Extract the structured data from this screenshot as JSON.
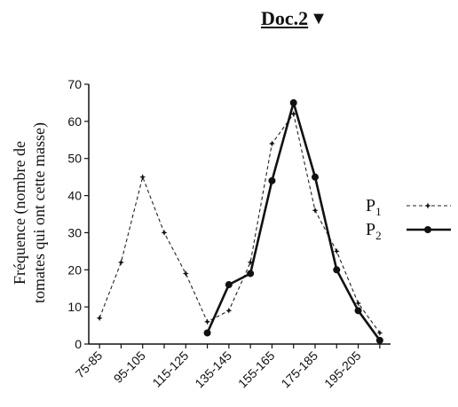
{
  "header": {
    "doc_label": "Doc.2",
    "marker": "▼"
  },
  "chart_data": {
    "type": "line",
    "title": "",
    "xlabel": "",
    "ylabel_line1": "Fréquence (nombre de",
    "ylabel_line2": "tomates qui ont cette masse)",
    "ylim": [
      0,
      70
    ],
    "yticks": [
      "0",
      "10",
      "20",
      "30",
      "40",
      "50",
      "60",
      "70"
    ],
    "categories": [
      "75-85",
      "95-105",
      "115-125",
      "135-145",
      "155-165",
      "175-185",
      "195-205"
    ],
    "x_centers": [
      80,
      90,
      100,
      110,
      120,
      130,
      140,
      150,
      160,
      170,
      180,
      190,
      200,
      210
    ],
    "series": [
      {
        "name": "P",
        "subscript": "1",
        "style": "dashed-star",
        "x": [
          80,
          90,
          100,
          110,
          120,
          130,
          140,
          150,
          160,
          170,
          180,
          190,
          200,
          210
        ],
        "values": [
          7,
          22,
          45,
          30,
          19,
          6,
          9,
          22,
          54,
          62,
          36,
          25,
          11,
          3
        ]
      },
      {
        "name": "P",
        "subscript": "2",
        "style": "solid-dot",
        "x": [
          130,
          140,
          150,
          160,
          170,
          180,
          190,
          200,
          210
        ],
        "values": [
          3,
          16,
          19,
          44,
          65,
          45,
          20,
          9,
          1
        ]
      }
    ]
  }
}
